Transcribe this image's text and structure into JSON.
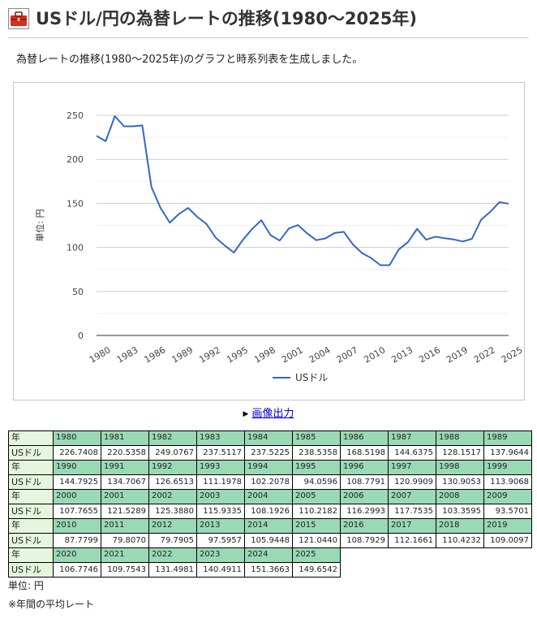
{
  "header": {
    "title": "USドル/円の為替レートの推移(1980～2025年)",
    "icon": "toolbox-icon",
    "icon_color": "#d62d20"
  },
  "description": "為替レートの推移(1980～2025年)のグラフと時系列表を生成しました。",
  "chart_data": {
    "type": "line",
    "title": "",
    "xlabel": "",
    "ylabel": "単位: 円",
    "ylim": [
      0,
      250
    ],
    "yticks": [
      0,
      50,
      100,
      150,
      200,
      250
    ],
    "xtick_labels": [
      "1980",
      "1983",
      "1986",
      "1989",
      "1992",
      "1995",
      "1998",
      "2001",
      "2004",
      "2007",
      "2010",
      "2013",
      "2016",
      "2019",
      "2022",
      "2025"
    ],
    "grid": true,
    "legend_position": "bottom",
    "line_color": "#3366cc",
    "x": [
      1980,
      1981,
      1982,
      1983,
      1984,
      1985,
      1986,
      1987,
      1988,
      1989,
      1990,
      1991,
      1992,
      1993,
      1994,
      1995,
      1996,
      1997,
      1998,
      1999,
      2000,
      2001,
      2002,
      2003,
      2004,
      2005,
      2006,
      2007,
      2008,
      2009,
      2010,
      2011,
      2012,
      2013,
      2014,
      2015,
      2016,
      2017,
      2018,
      2019,
      2020,
      2021,
      2022,
      2023,
      2024,
      2025
    ],
    "series": [
      {
        "name": "USドル",
        "values": [
          226.7408,
          220.5358,
          249.0767,
          237.5117,
          237.5225,
          238.5358,
          168.5198,
          144.6375,
          128.1517,
          137.9644,
          144.7925,
          134.7067,
          126.6513,
          111.1978,
          102.2078,
          94.0596,
          108.7791,
          120.9909,
          130.9053,
          113.9068,
          107.7655,
          121.5289,
          125.388,
          115.9335,
          108.1926,
          110.2182,
          116.2993,
          117.7535,
          103.3595,
          93.5701,
          87.7799,
          79.807,
          79.7905,
          97.5957,
          105.9448,
          121.044,
          108.7929,
          112.1661,
          110.4232,
          109.0097,
          106.7746,
          109.7543,
          131.4981,
          140.4911,
          151.3663,
          149.6542
        ]
      }
    ]
  },
  "export": {
    "label": "画像出力"
  },
  "table": {
    "year_header": "年",
    "row_label": "USドル",
    "blocks": [
      {
        "years": [
          "1980",
          "1981",
          "1982",
          "1983",
          "1984",
          "1985",
          "1986",
          "1987",
          "1988",
          "1989"
        ],
        "values": [
          "226.7408",
          "220.5358",
          "249.0767",
          "237.5117",
          "237.5225",
          "238.5358",
          "168.5198",
          "144.6375",
          "128.1517",
          "137.9644"
        ]
      },
      {
        "years": [
          "1990",
          "1991",
          "1992",
          "1993",
          "1994",
          "1995",
          "1996",
          "1997",
          "1998",
          "1999"
        ],
        "values": [
          "144.7925",
          "134.7067",
          "126.6513",
          "111.1978",
          "102.2078",
          "94.0596",
          "108.7791",
          "120.9909",
          "130.9053",
          "113.9068"
        ]
      },
      {
        "years": [
          "2000",
          "2001",
          "2002",
          "2003",
          "2004",
          "2005",
          "2006",
          "2007",
          "2008",
          "2009"
        ],
        "values": [
          "107.7655",
          "121.5289",
          "125.3880",
          "115.9335",
          "108.1926",
          "110.2182",
          "116.2993",
          "117.7535",
          "103.3595",
          "93.5701"
        ]
      },
      {
        "years": [
          "2010",
          "2011",
          "2012",
          "2013",
          "2014",
          "2015",
          "2016",
          "2017",
          "2018",
          "2019"
        ],
        "values": [
          "87.7799",
          "79.8070",
          "79.7905",
          "97.5957",
          "105.9448",
          "121.0440",
          "108.7929",
          "112.1661",
          "110.4232",
          "109.0097"
        ]
      },
      {
        "years": [
          "2020",
          "2021",
          "2022",
          "2023",
          "2024",
          "2025"
        ],
        "values": [
          "106.7746",
          "109.7543",
          "131.4981",
          "140.4911",
          "151.3663",
          "149.6542"
        ]
      }
    ]
  },
  "notes": {
    "unit": "単位: 円",
    "average": "※年間の平均レート"
  }
}
